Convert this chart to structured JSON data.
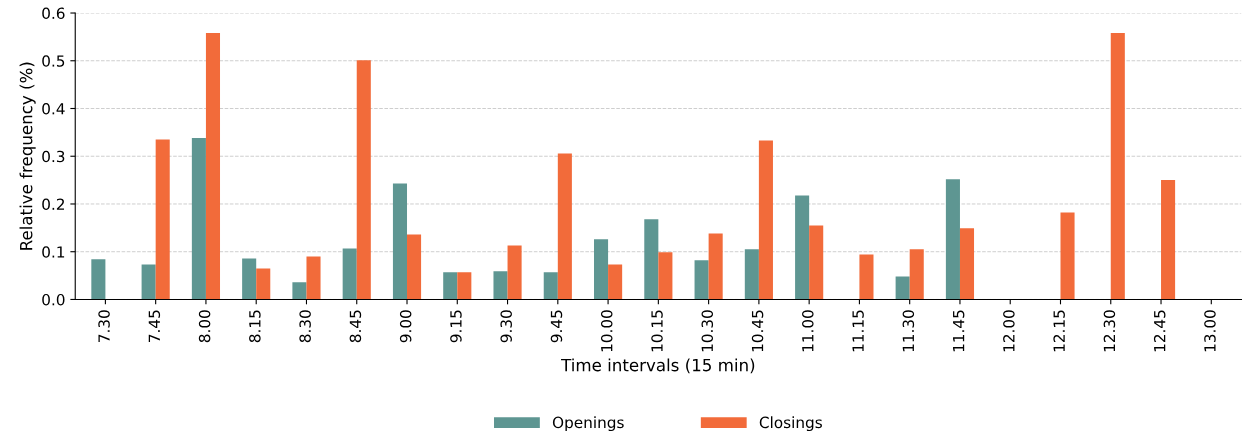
{
  "chart_data": {
    "type": "bar",
    "xlabel": "Time intervals (15 min)",
    "ylabel": "Relative frequency (%)",
    "categories": [
      "7.30",
      "7.45",
      "8.00",
      "8.15",
      "8.30",
      "8.45",
      "9.00",
      "9.15",
      "9.30",
      "9.45",
      "10.00",
      "10.15",
      "10.30",
      "10.45",
      "11.00",
      "11.15",
      "11.30",
      "11.45",
      "12.00",
      "12.15",
      "12.30",
      "12.45",
      "13.00"
    ],
    "series": [
      {
        "name": "Openings",
        "color": "#5e9692",
        "values": [
          0.084,
          0.073,
          0.338,
          0.086,
          0.036,
          0.107,
          0.243,
          0.057,
          0.059,
          0.057,
          0.126,
          0.168,
          0.082,
          0.105,
          0.218,
          0,
          0.048,
          0.252,
          0,
          0,
          0,
          0,
          0
        ]
      },
      {
        "name": "Closings",
        "color": "#f26b3a",
        "values": [
          0,
          0.335,
          0.558,
          0.065,
          0.09,
          0.501,
          0.136,
          0.057,
          0.113,
          0.306,
          0.073,
          0.099,
          0.138,
          0.333,
          0.155,
          0.094,
          0.105,
          0.149,
          0,
          0.182,
          0.558,
          0.25,
          0
        ]
      }
    ],
    "ylim": [
      0,
      0.6
    ],
    "yticks": [
      {
        "value": 0,
        "label": "0.0"
      },
      {
        "value": 0.1,
        "label": "0.1"
      },
      {
        "value": 0.2,
        "label": "0.2"
      },
      {
        "value": 0.3,
        "label": "0.3"
      },
      {
        "value": 0.4,
        "label": "0.4"
      },
      {
        "value": 0.5,
        "label": "0.5"
      },
      {
        "value": 0.6,
        "label": "0.6"
      }
    ],
    "grid": "y",
    "legend": "bottom"
  }
}
